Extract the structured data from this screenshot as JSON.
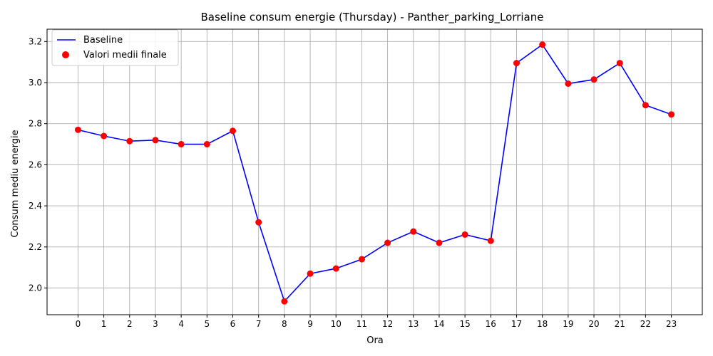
{
  "chart_data": {
    "type": "line",
    "title": "Baseline consum energie (Thursday) - Panther_parking_Lorriane",
    "xlabel": "Ora",
    "ylabel": "Consum mediu energie",
    "x": [
      0,
      1,
      2,
      3,
      4,
      5,
      6,
      7,
      8,
      9,
      10,
      11,
      12,
      13,
      14,
      15,
      16,
      17,
      18,
      19,
      20,
      21,
      22,
      23
    ],
    "xlim": [
      -1.2,
      24.2
    ],
    "ylim": [
      1.87,
      3.26
    ],
    "yticks": [
      2.0,
      2.2,
      2.4,
      2.6,
      2.8,
      3.0,
      3.2
    ],
    "grid": true,
    "legend_position": "top-left",
    "series": [
      {
        "name": "Baseline",
        "kind": "line",
        "color": "#0000ff",
        "values": [
          2.77,
          2.74,
          2.715,
          2.72,
          2.7,
          2.7,
          2.765,
          2.32,
          1.935,
          2.07,
          2.095,
          2.14,
          2.22,
          2.275,
          2.22,
          2.26,
          2.23,
          3.095,
          3.185,
          2.995,
          3.015,
          3.095,
          2.89,
          2.845
        ]
      },
      {
        "name": "Valori medii finale",
        "kind": "scatter",
        "color": "#ff0000",
        "values": [
          2.77,
          2.74,
          2.715,
          2.72,
          2.7,
          2.7,
          2.765,
          2.32,
          1.935,
          2.07,
          2.095,
          2.14,
          2.22,
          2.275,
          2.22,
          2.26,
          2.23,
          3.095,
          3.185,
          2.995,
          3.015,
          3.095,
          2.89,
          2.845
        ]
      }
    ]
  }
}
